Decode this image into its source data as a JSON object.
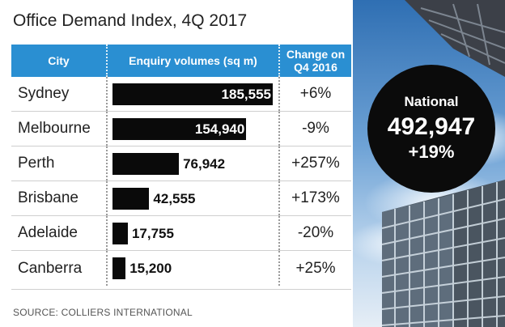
{
  "title": "Office Demand Index, 4Q 2017",
  "headers": {
    "city": "City",
    "enquiry": "Enquiry volumes (sq m)",
    "change": "Change on Q4 2016"
  },
  "national": {
    "label": "National",
    "value": "492,947",
    "change": "+19%"
  },
  "source": "SOURCE: COLLIERS INTERNATIONAL",
  "colors": {
    "header_blue": "#2a8fd2",
    "bar_black": "#0a0a0a"
  },
  "chart_data": {
    "type": "bar",
    "title": "Office Demand Index, 4Q 2017",
    "xlabel": "Enquiry volumes (sq m)",
    "ylabel": "City",
    "categories": [
      "Sydney",
      "Melbourne",
      "Perth",
      "Brisbane",
      "Adelaide",
      "Canberra"
    ],
    "values": [
      185555,
      154940,
      76942,
      42555,
      17755,
      15200
    ],
    "value_labels": [
      "185,555",
      "154,940",
      "76,942",
      "42,555",
      "17,755",
      "15,200"
    ],
    "change_labels": [
      "+6%",
      "-9%",
      "+257%",
      "+173%",
      "-20%",
      "+25%"
    ],
    "xlim": [
      0,
      185555
    ]
  }
}
